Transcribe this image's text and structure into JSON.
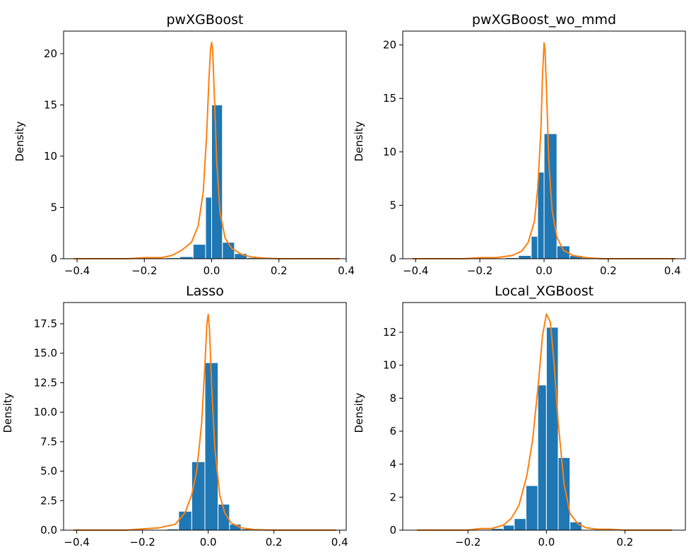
{
  "chart_data": [
    {
      "type": "histogram",
      "title": "pwXGBoost",
      "ylabel": "Density",
      "xlim": [
        -0.44,
        0.4
      ],
      "ylim": [
        0,
        22.2
      ],
      "xticks": [
        -0.4,
        -0.2,
        0.0,
        0.2,
        0.4
      ],
      "xtick_labels": [
        "−0.4",
        "−0.2",
        "0.0",
        "0.2",
        "0.4"
      ],
      "yticks": [
        0,
        5,
        10,
        15,
        20
      ],
      "ytick_labels": [
        "0",
        "5",
        "10",
        "15",
        "20"
      ],
      "bins": [
        {
          "x0": -0.135,
          "x1": -0.095,
          "value": 0.1
        },
        {
          "x0": -0.095,
          "x1": -0.055,
          "value": 0.2
        },
        {
          "x0": -0.055,
          "x1": -0.018,
          "value": 1.4
        },
        {
          "x0": -0.018,
          "x1": 0.0,
          "value": 6.0
        },
        {
          "x0": 0.0,
          "x1": 0.032,
          "value": 15.0
        },
        {
          "x0": 0.032,
          "x1": 0.068,
          "value": 1.6
        },
        {
          "x0": 0.068,
          "x1": 0.105,
          "value": 0.5
        },
        {
          "x0": 0.105,
          "x1": 0.14,
          "value": 0.1
        }
      ],
      "kde": {
        "x": [
          -0.41,
          -0.25,
          -0.2,
          -0.15,
          -0.12,
          -0.09,
          -0.06,
          -0.04,
          -0.025,
          -0.015,
          -0.008,
          -0.003,
          0.0,
          0.003,
          0.008,
          0.015,
          0.025,
          0.04,
          0.06,
          0.09,
          0.12,
          0.16,
          0.2,
          0.38
        ],
        "y": [
          0.0,
          0.0,
          0.1,
          0.1,
          0.3,
          0.8,
          1.6,
          3.2,
          6.5,
          12.0,
          17.5,
          20.5,
          21.1,
          20.3,
          16.0,
          9.5,
          4.5,
          2.0,
          1.0,
          0.4,
          0.15,
          0.05,
          0.0,
          0.0
        ]
      }
    },
    {
      "type": "histogram",
      "title": "pwXGBoost_wo_mmd",
      "ylabel": "Density",
      "xlim": [
        -0.44,
        0.44
      ],
      "ylim": [
        0,
        21.3
      ],
      "xticks": [
        -0.4,
        -0.2,
        0.0,
        0.2,
        0.4
      ],
      "xtick_labels": [
        "−0.4",
        "−0.2",
        "0.0",
        "0.2",
        "0.4"
      ],
      "yticks": [
        0,
        5,
        10,
        15,
        20
      ],
      "ytick_labels": [
        "0",
        "5",
        "10",
        "15",
        "20"
      ],
      "bins": [
        {
          "x0": -0.12,
          "x1": -0.08,
          "value": 0.1
        },
        {
          "x0": -0.08,
          "x1": -0.04,
          "value": 0.3
        },
        {
          "x0": -0.04,
          "x1": -0.02,
          "value": 2.1
        },
        {
          "x0": -0.02,
          "x1": 0.0,
          "value": 8.1
        },
        {
          "x0": 0.0,
          "x1": 0.04,
          "value": 11.7
        },
        {
          "x0": 0.04,
          "x1": 0.08,
          "value": 1.2
        },
        {
          "x0": 0.08,
          "x1": 0.12,
          "value": 0.3
        },
        {
          "x0": 0.12,
          "x1": 0.16,
          "value": 0.1
        }
      ],
      "kde": {
        "x": [
          -0.41,
          -0.25,
          -0.2,
          -0.15,
          -0.1,
          -0.07,
          -0.05,
          -0.03,
          -0.02,
          -0.01,
          -0.005,
          0.0,
          0.003,
          0.008,
          0.015,
          0.025,
          0.04,
          0.06,
          0.09,
          0.13,
          0.18,
          0.41
        ],
        "y": [
          0.0,
          0.0,
          0.1,
          0.1,
          0.3,
          0.7,
          1.5,
          3.5,
          6.5,
          12.0,
          17.0,
          20.2,
          19.5,
          15.5,
          9.0,
          4.5,
          2.0,
          0.8,
          0.3,
          0.1,
          0.0,
          0.0
        ]
      }
    },
    {
      "type": "histogram",
      "title": "Lasso",
      "ylabel": "Density",
      "xlim": [
        -0.44,
        0.42
      ],
      "ylim": [
        0,
        19.3
      ],
      "xticks": [
        -0.4,
        -0.2,
        0.0,
        0.2,
        0.4
      ],
      "xtick_labels": [
        "−0.4",
        "−0.2",
        "0.0",
        "0.2",
        "0.4"
      ],
      "yticks": [
        0,
        2.5,
        5,
        7.5,
        10,
        12.5,
        15,
        17.5
      ],
      "ytick_labels": [
        "0.0",
        "2.5",
        "5.0",
        "7.5",
        "10.0",
        "12.5",
        "15.0",
        "17.5"
      ],
      "bins": [
        {
          "x0": -0.125,
          "x1": -0.09,
          "value": 0.1
        },
        {
          "x0": -0.09,
          "x1": -0.05,
          "value": 1.6
        },
        {
          "x0": -0.05,
          "x1": -0.01,
          "value": 5.8
        },
        {
          "x0": -0.01,
          "x1": 0.03,
          "value": 14.2
        },
        {
          "x0": 0.03,
          "x1": 0.065,
          "value": 2.2
        },
        {
          "x0": 0.065,
          "x1": 0.1,
          "value": 0.5
        },
        {
          "x0": 0.1,
          "x1": 0.14,
          "value": 0.1
        }
      ],
      "kde": {
        "x": [
          -0.41,
          -0.25,
          -0.2,
          -0.15,
          -0.1,
          -0.07,
          -0.05,
          -0.035,
          -0.02,
          -0.01,
          -0.004,
          0.0,
          0.004,
          0.01,
          0.02,
          0.035,
          0.05,
          0.07,
          0.1,
          0.14,
          0.2,
          0.39
        ],
        "y": [
          0.0,
          0.0,
          0.1,
          0.2,
          0.5,
          1.5,
          3.0,
          5.0,
          9.0,
          14.0,
          17.5,
          18.3,
          17.0,
          12.5,
          7.0,
          3.0,
          1.5,
          0.6,
          0.2,
          0.05,
          0.0,
          0.0
        ]
      }
    },
    {
      "type": "histogram",
      "title": "Local_XGBoost",
      "ylabel": "Density",
      "xlim": [
        -0.366,
        0.354
      ],
      "ylim": [
        0,
        13.8
      ],
      "xticks": [
        -0.2,
        0.0,
        0.2
      ],
      "xtick_labels": [
        "−0.2",
        "0.0",
        "0.2"
      ],
      "yticks": [
        0,
        2,
        4,
        6,
        8,
        10,
        12
      ],
      "ytick_labels": [
        "0",
        "2",
        "4",
        "6",
        "8",
        "10",
        "12"
      ],
      "bins": [
        {
          "x0": -0.14,
          "x1": -0.11,
          "value": 0.1
        },
        {
          "x0": -0.11,
          "x1": -0.082,
          "value": 0.3
        },
        {
          "x0": -0.082,
          "x1": -0.052,
          "value": 0.7
        },
        {
          "x0": -0.052,
          "x1": -0.022,
          "value": 2.7
        },
        {
          "x0": -0.022,
          "x1": 0.0,
          "value": 8.8
        },
        {
          "x0": 0.0,
          "x1": 0.03,
          "value": 12.3
        },
        {
          "x0": 0.03,
          "x1": 0.06,
          "value": 4.4
        },
        {
          "x0": 0.06,
          "x1": 0.09,
          "value": 0.5
        }
      ],
      "kde": {
        "x": [
          -0.33,
          -0.2,
          -0.17,
          -0.14,
          -0.11,
          -0.09,
          -0.07,
          -0.05,
          -0.035,
          -0.02,
          -0.01,
          0.0,
          0.01,
          0.02,
          0.03,
          0.045,
          0.06,
          0.08,
          0.1,
          0.13,
          0.16,
          0.2,
          0.32
        ],
        "y": [
          0.0,
          0.0,
          0.1,
          0.1,
          0.3,
          0.7,
          1.5,
          3.3,
          5.5,
          9.0,
          11.8,
          13.1,
          12.6,
          10.0,
          6.5,
          2.8,
          1.0,
          0.4,
          0.15,
          0.05,
          0.05,
          0.0,
          0.0
        ]
      }
    }
  ]
}
